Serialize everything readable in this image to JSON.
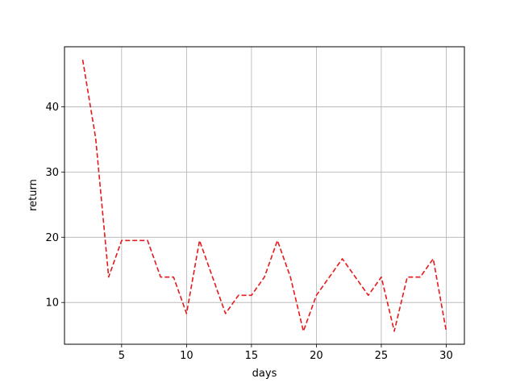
{
  "chart_data": {
    "type": "line",
    "title": "",
    "xlabel": "days",
    "ylabel": "return",
    "xlim": [
      0.6,
      31.4
    ],
    "ylim": [
      3.6,
      49.2
    ],
    "xticks": [
      5,
      10,
      15,
      20,
      25,
      30
    ],
    "yticks": [
      10,
      20,
      30,
      40
    ],
    "grid": true,
    "legend": "none",
    "series": [
      {
        "color": "#e41a1c",
        "line_style": "dashed",
        "x": [
          2,
          3,
          4,
          5,
          6,
          7,
          8,
          9,
          10,
          11,
          12,
          13,
          14,
          15,
          16,
          17,
          18,
          19,
          20,
          21,
          22,
          23,
          24,
          25,
          26,
          27,
          28,
          29,
          30
        ],
        "y": [
          47.2,
          35.2,
          13.9,
          19.5,
          19.5,
          19.5,
          13.9,
          13.9,
          8.3,
          19.5,
          13.9,
          8.3,
          11.1,
          11.1,
          13.9,
          19.5,
          13.9,
          5.6,
          11.1,
          13.9,
          16.7,
          13.9,
          11.1,
          13.9,
          5.6,
          13.9,
          13.9,
          16.7,
          5.6
        ]
      }
    ]
  }
}
